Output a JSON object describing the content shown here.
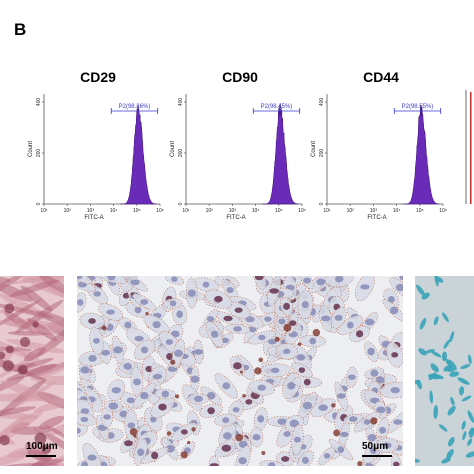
{
  "panel_label": "B",
  "histograms": [
    {
      "marker": "CD29",
      "gate": "P2(98.36%)",
      "peak_log": 5.05,
      "ylabel": "Count",
      "xlabel": "FITC-A",
      "yticks": [
        "0",
        "200",
        "400"
      ],
      "xticks": [
        "10¹",
        "10²",
        "10³",
        "10⁴",
        "10⁵",
        "10⁶"
      ]
    },
    {
      "marker": "CD90",
      "gate": "P2(98.45%)",
      "peak_log": 5.05,
      "ylabel": "Count",
      "xlabel": "FITC-A",
      "yticks": [
        "0",
        "200",
        "400"
      ],
      "xticks": [
        "10¹",
        "10²",
        "10³",
        "10⁴",
        "10⁵",
        "10⁶"
      ]
    },
    {
      "marker": "CD44",
      "gate": "P2(98.55%)",
      "peak_log": 5.05,
      "ylabel": "Count",
      "xlabel": "FITC-A",
      "yticks": [
        "0",
        "200",
        "400"
      ],
      "xticks": [
        "10¹",
        "10²",
        "10³",
        "10⁴",
        "10⁵",
        "10⁶"
      ]
    }
  ],
  "histogram_fill": "#6a2bb8",
  "gate_color": "#3a3ad0",
  "micrographs": [
    {
      "scale_label": "100μm",
      "stain": "pink-red"
    },
    {
      "scale_label": "50μm",
      "stain": "brown-blue"
    },
    {
      "scale_label": "",
      "stain": "blue-green"
    }
  ]
}
